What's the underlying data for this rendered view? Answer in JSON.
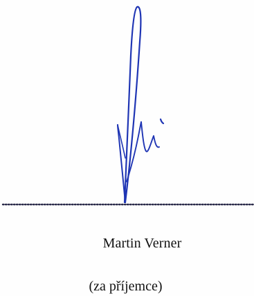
{
  "signature_block": {
    "signer_name": "Martin Verner",
    "signer_role": "(za příjemce)",
    "ink_color": "#1f35b4",
    "line_color": "#2b2b4a"
  }
}
